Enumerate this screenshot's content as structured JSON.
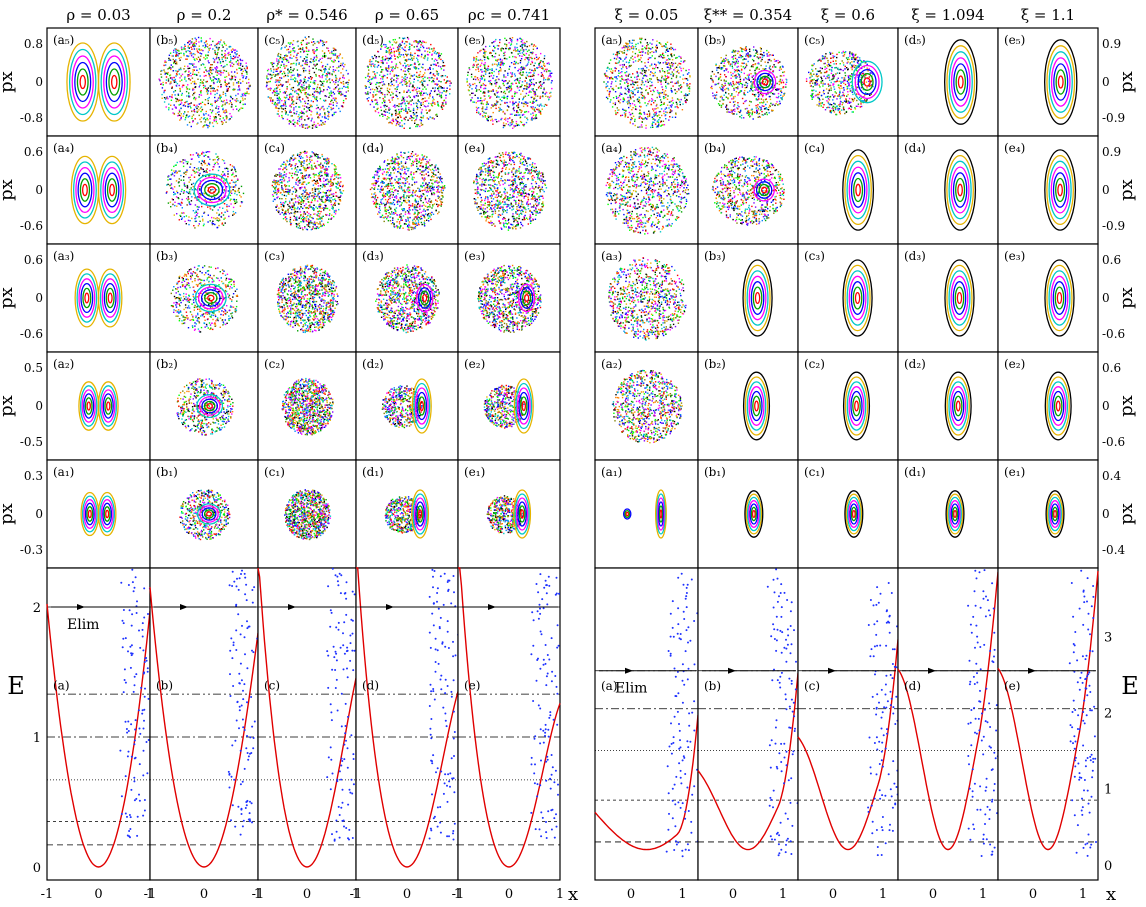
{
  "chart_data": [
    {
      "type": "scatter",
      "group": "left",
      "columns": [
        {
          "title": "ρ = 0.03"
        },
        {
          "title": "ρ = 0.2"
        },
        {
          "title": "ρ* = 0.546"
        },
        {
          "title": "ρ = 0.65"
        },
        {
          "title": "ρc = 0.741"
        }
      ],
      "column_letters": [
        "a",
        "b",
        "c",
        "d",
        "e"
      ],
      "poincare_rows": [
        {
          "level": 5,
          "ylabel": "px",
          "yticks": [
            "0.8",
            "0",
            "-0.8"
          ]
        },
        {
          "level": 4,
          "ylabel": "px",
          "yticks": [
            "0.6",
            "0",
            "-0.6"
          ]
        },
        {
          "level": 3,
          "ylabel": "px",
          "yticks": [
            "0.6",
            "0",
            "-0.6"
          ]
        },
        {
          "level": 2,
          "ylabel": "px",
          "yticks": [
            "0.5",
            "0",
            "-0.5"
          ]
        },
        {
          "level": 1,
          "ylabel": "px",
          "yticks": [
            "0.3",
            "0",
            "-0.3"
          ]
        }
      ],
      "potential_row": {
        "ylabel": "E",
        "yticks": [
          "2",
          "1",
          "0"
        ],
        "ylim": [
          -0.1,
          2.3
        ],
        "xlabel": "x",
        "xticks": [
          "-1",
          "0",
          "1"
        ],
        "e_lim_label": "Elim",
        "energy_levels": [
          0.17,
          0.35,
          0.67,
          1.0,
          1.33,
          2.0
        ],
        "panel_labels": [
          "(a)",
          "(b)",
          "(c)",
          "(d)",
          "(e)"
        ]
      }
    },
    {
      "type": "scatter",
      "group": "right",
      "columns": [
        {
          "title": "ξ = 0.05"
        },
        {
          "title": "ξ** = 0.354"
        },
        {
          "title": "ξ = 0.6"
        },
        {
          "title": "ξ = 1.094"
        },
        {
          "title": "ξ = 1.1"
        }
      ],
      "column_letters": [
        "a",
        "b",
        "c",
        "d",
        "e"
      ],
      "poincare_rows": [
        {
          "level": 5,
          "ylabel": "px",
          "yticks": [
            "0.9",
            "0",
            "-0.9"
          ]
        },
        {
          "level": 4,
          "ylabel": "px",
          "yticks": [
            "0.9",
            "0",
            "-0.9"
          ]
        },
        {
          "level": 3,
          "ylabel": "px",
          "yticks": [
            "0.6",
            "0",
            "-0.6"
          ]
        },
        {
          "level": 2,
          "ylabel": "px",
          "yticks": [
            "0.6",
            "0",
            "-0.6"
          ]
        },
        {
          "level": 1,
          "ylabel": "px",
          "yticks": [
            "0.4",
            "0",
            "-0.4"
          ]
        }
      ],
      "potential_row": {
        "ylabel": "E",
        "yticks": [
          "3",
          "2",
          "1",
          "0"
        ],
        "ylim": [
          -0.2,
          3.9
        ],
        "xlabel": "x",
        "xticks": [
          "0",
          "1"
        ],
        "e_lim_label": "Elim",
        "energy_levels": [
          0.3,
          0.85,
          1.5,
          2.05,
          2.55
        ],
        "panel_labels": [
          "(a)",
          "(b)",
          "(c)",
          "(d)",
          "(e)"
        ]
      }
    }
  ]
}
